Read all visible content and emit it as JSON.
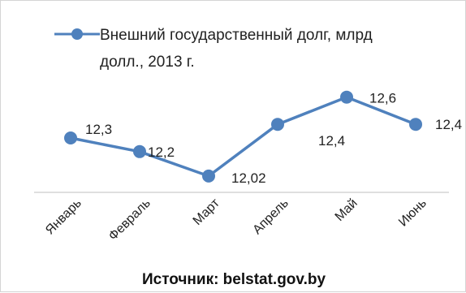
{
  "chart_data": {
    "type": "line",
    "categories": [
      "Январь",
      "Февраль",
      "Март",
      "Апрель",
      "Май",
      "Июнь"
    ],
    "series": [
      {
        "name": "Внешний государственный долг, млрд долл., 2013 г.",
        "values": [
          12.3,
          12.2,
          12.02,
          12.4,
          12.6,
          12.4
        ],
        "labels": [
          "12,3",
          "12,2",
          "12,02",
          "12,4",
          "12,6",
          "12,4"
        ],
        "color": "#4f81bd"
      }
    ],
    "legend_lines": [
      "Внешний государственный долг, млрд",
      "долл., 2013  г."
    ],
    "legend_position": "top",
    "source": "Источник: belstat.gov.by",
    "ylim": [
      11.9,
      12.7
    ],
    "grid": false
  }
}
